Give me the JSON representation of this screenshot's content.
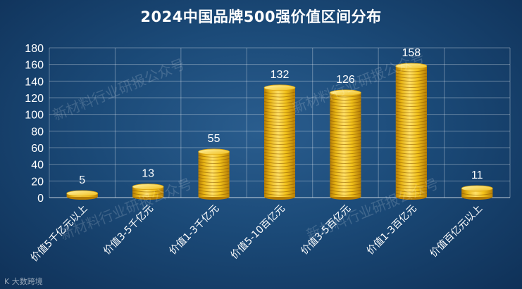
{
  "chart_data": {
    "type": "bar",
    "title": "2024中国品牌500强价值区间分布",
    "categories": [
      "价值5千亿元以上",
      "价值3-5千亿元",
      "价值1-3千亿元",
      "价值5-10百亿元",
      "价值3-5百亿元",
      "价值1-3百亿元",
      "价值百亿元以上"
    ],
    "values": [
      5,
      13,
      55,
      132,
      126,
      158,
      11
    ],
    "ylim": [
      0,
      180
    ],
    "yticks": [
      0,
      20,
      40,
      60,
      80,
      100,
      120,
      140,
      160,
      180
    ],
    "grid": true,
    "bar_style": "gold coin stacks",
    "colors": {
      "coin_light": "#ffe066",
      "coin_mid": "#f2c21a",
      "coin_dark": "#c48a06"
    }
  },
  "watermarks": [
    "新材料行业研报公众号",
    "新材料行业研报公众号",
    "新材料行业研报公众号",
    "新材料行业研报公众号"
  ],
  "brand": "K 大数跨境"
}
